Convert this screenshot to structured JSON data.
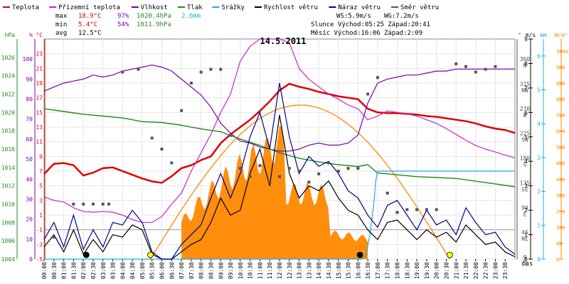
{
  "chart_data": {
    "type": "line",
    "title": "14.5.2011",
    "legend": [
      {
        "name": "Teplota",
        "color": "#dd0000"
      },
      {
        "name": "Přízemní teplota",
        "color": "#cc22cc"
      },
      {
        "name": "Vlhkost",
        "color": "#7700aa"
      },
      {
        "name": "Tlak",
        "color": "#228822"
      },
      {
        "name": "Srážky",
        "color": "#22aadd"
      },
      {
        "name": "Rychlost větru",
        "color": "#000000"
      },
      {
        "name": "Náraz větru",
        "color": "#000088"
      },
      {
        "name": "Směr větru",
        "color": "#555555"
      }
    ],
    "stats": {
      "max_label": "max",
      "max_temp": "18.9°C",
      "max_hum": "97%",
      "max_press": "1020.4hPa",
      "rain": "2.6mm",
      "min_label": "min",
      "min_temp": "5.4°C",
      "min_hum": "54%",
      "min_press": "1011.9hPa",
      "avg_label": "avg",
      "avg_temp": "12.5°C"
    },
    "wind": {
      "ws": "WS:5.9m/s",
      "wg": "WG:7.2m/s"
    },
    "sun": "Slunce Východ:05:25  Západ:20:41",
    "moon": "Měsíc  Východ:16:06  Západ:2:09",
    "xlabel": "čas",
    "x_ticks": [
      "00:00",
      "00:30",
      "01:00",
      "01:30",
      "02:00",
      "02:30",
      "03:00",
      "03:30",
      "04:00",
      "04:30",
      "05:00",
      "05:30",
      "06:00",
      "06:30",
      "07:00",
      "07:30",
      "08:00",
      "08:30",
      "09:00",
      "09:30",
      "10:00",
      "10:30",
      "11:00",
      "11:30",
      "12:00",
      "12:30",
      "13:00",
      "13:30",
      "14:00",
      "14:30",
      "15:00",
      "15:30",
      "16:00",
      "16:30",
      "17:00",
      "17:30",
      "18:00",
      "18:30",
      "19:00",
      "19:30",
      "20:00",
      "20:30",
      "21:00",
      "21:30",
      "22:00",
      "22:30",
      "23:00",
      "23:30"
    ],
    "axes": {
      "hpa": {
        "label": "hPa",
        "color": "#228822",
        "range": [
          1004,
          1028
        ],
        "ticks": [
          1004,
          1006,
          1008,
          1010,
          1012,
          1014,
          1016,
          1018,
          1020,
          1022,
          1024,
          1026
        ]
      },
      "pct": {
        "label": "%",
        "color": "#7700aa",
        "range": [
          0,
          110
        ],
        "ticks": [
          0,
          10,
          20,
          30,
          40,
          50,
          60,
          70,
          80,
          90,
          100
        ]
      },
      "temp": {
        "label": "°C",
        "color": "#dd0000",
        "range": [
          -5,
          25
        ],
        "ticks": [
          -5,
          -3,
          -1,
          1,
          3,
          5,
          7,
          9,
          11,
          13,
          15,
          17,
          19,
          21,
          23
        ]
      },
      "dir": {
        "label": "°",
        "color": "#555555",
        "range": [
          0,
          400
        ],
        "ticks": [
          {
            "v": 0,
            "d": "0",
            "c": "N"
          },
          {
            "v": 45,
            "d": "45",
            "c": "NE"
          },
          {
            "v": 90,
            "d": "90",
            "c": "E"
          },
          {
            "v": 135,
            "d": "135",
            "c": "SE"
          },
          {
            "v": 180,
            "d": "180",
            "c": "S"
          },
          {
            "v": 225,
            "d": "225",
            "c": "SW"
          },
          {
            "v": 270,
            "d": "270",
            "c": "W"
          },
          {
            "v": 315,
            "d": "315",
            "c": "NW"
          },
          {
            "v": 360,
            "d": "360",
            "c": "N"
          }
        ]
      },
      "mm": {
        "label": "mm",
        "color": "#22aadd",
        "range": [
          0,
          6.5
        ],
        "ticks": [
          0,
          1,
          2,
          3,
          4,
          5,
          6
        ]
      },
      "ms": {
        "label": "m/s",
        "color": "#000000",
        "range": [
          0,
          9
        ],
        "ticks": [
          0,
          1,
          2,
          3,
          4,
          5,
          6,
          7,
          8,
          9
        ]
      },
      "wm2": {
        "label": "W/m²",
        "color": "#ff8800",
        "range": [
          0,
          1100
        ],
        "ticks": [
          0,
          80,
          160,
          240,
          320,
          400,
          480,
          560,
          640,
          720,
          800,
          880,
          960,
          1040
        ]
      }
    },
    "series": [
      {
        "name": "Teplota",
        "axis": "temp",
        "color": "#dd0000",
        "x_hours": [
          0,
          0.5,
          1,
          1.5,
          2,
          2.5,
          3,
          3.5,
          4,
          4.5,
          5,
          5.5,
          6,
          6.5,
          7,
          7.5,
          8,
          8.5,
          9,
          9.5,
          10,
          10.5,
          11,
          11.5,
          12,
          12.5,
          13,
          13.5,
          14,
          14.5,
          15,
          15.5,
          16,
          16.5,
          17,
          17.5,
          18,
          18.5,
          19,
          19.5,
          20,
          20.5,
          21,
          21.5,
          22,
          22.5,
          23,
          23.5,
          24
        ],
        "y": [
          6.6,
          8.0,
          8.1,
          7.8,
          6.4,
          6.8,
          7.4,
          7.5,
          7.0,
          6.5,
          6.0,
          5.6,
          5.4,
          6.3,
          7.4,
          7.8,
          8.5,
          9.0,
          10.8,
          12.0,
          13.0,
          14.0,
          15.2,
          16.5,
          18.0,
          18.9,
          18.5,
          18.2,
          17.8,
          17.5,
          17.2,
          17.0,
          16.8,
          15.5,
          15.0,
          14.9,
          14.9,
          14.8,
          14.7,
          14.5,
          14.4,
          14.2,
          14.0,
          13.8,
          13.5,
          13.1,
          12.8,
          12.6,
          12.2
        ]
      },
      {
        "name": "Přízemní teplota",
        "axis": "temp",
        "color": "#cc22cc",
        "x_hours": [
          0,
          0.5,
          1,
          1.5,
          2,
          2.5,
          3,
          3.5,
          4,
          4.5,
          5,
          5.5,
          6,
          6.5,
          7,
          7.5,
          8,
          8.5,
          9,
          9.5,
          10,
          10.5,
          11,
          11.5,
          12,
          12.5,
          13,
          13.5,
          14,
          14.5,
          15,
          15.5,
          16,
          16.5,
          17,
          17.5,
          18,
          18.5,
          19,
          19.5,
          20,
          20.5,
          21,
          21.5,
          22,
          22.5,
          23,
          23.5,
          24
        ],
        "y": [
          3.5,
          3.0,
          2.8,
          2.0,
          1.5,
          1.4,
          1.5,
          1.4,
          1.0,
          0.4,
          0.0,
          0.0,
          0.8,
          2.5,
          4.0,
          7.0,
          9.5,
          12.0,
          15.0,
          17.5,
          22.0,
          24.0,
          25.0,
          25.0,
          25.0,
          24.5,
          21.0,
          19.5,
          18.5,
          17.5,
          16.8,
          16.0,
          15.5,
          14.0,
          14.5,
          15.2,
          15.0,
          14.8,
          14.5,
          14.0,
          13.5,
          12.8,
          12.0,
          11.2,
          10.5,
          10.0,
          9.6,
          9.2,
          8.8
        ]
      },
      {
        "name": "Vlhkost",
        "axis": "pct",
        "color": "#7700aa",
        "x_hours": [
          0,
          0.5,
          1,
          1.5,
          2,
          2.5,
          3,
          3.5,
          4,
          4.5,
          5,
          5.5,
          6,
          6.5,
          7,
          7.5,
          8,
          8.5,
          9,
          9.5,
          10,
          10.5,
          11,
          11.5,
          12,
          12.5,
          13,
          13.5,
          14,
          14.5,
          15,
          15.5,
          16,
          16.5,
          17,
          17.5,
          18,
          18.5,
          19,
          19.5,
          20,
          20.5,
          21,
          21.5,
          22,
          22.5,
          23,
          23.5,
          24
        ],
        "y": [
          84,
          86,
          88,
          89,
          90,
          92,
          91,
          92,
          94,
          95,
          96,
          97,
          96,
          94,
          90,
          86,
          82,
          76,
          68,
          63,
          59,
          58,
          56,
          55,
          54,
          54,
          55,
          57,
          58,
          57,
          57,
          58,
          62,
          78,
          88,
          90,
          91,
          92,
          92,
          93,
          94,
          94,
          95,
          95,
          95,
          95,
          95,
          95,
          95
        ]
      },
      {
        "name": "Tlak",
        "axis": "hpa",
        "color": "#228822",
        "x_hours": [
          0,
          1,
          2,
          3,
          4,
          5,
          6,
          7,
          8,
          9,
          10,
          11,
          12,
          13,
          14,
          15,
          16,
          16.5,
          17,
          18,
          19,
          20,
          21,
          22,
          23,
          24
        ],
        "y": [
          1020.4,
          1020.1,
          1019.8,
          1019.6,
          1019.4,
          1019.0,
          1018.9,
          1018.6,
          1018.2,
          1017.9,
          1017.1,
          1016.4,
          1015.6,
          1015.0,
          1014.6,
          1014.3,
          1014.1,
          1014.3,
          1013.4,
          1013.2,
          1013.0,
          1012.9,
          1012.8,
          1012.5,
          1012.2,
          1011.9
        ]
      },
      {
        "name": "Srážky",
        "axis": "mm",
        "color": "#22aadd",
        "x_hours": [
          0,
          16.2,
          16.4,
          16.6,
          16.8,
          16.9,
          17,
          24
        ],
        "y": [
          0,
          0,
          0.1,
          0.7,
          1.6,
          2.3,
          2.6,
          2.6
        ]
      },
      {
        "name": "Rychlost větru",
        "axis": "ms",
        "color": "#000000",
        "x_hours": [
          0,
          0.5,
          1,
          1.5,
          2,
          2.5,
          3,
          3.5,
          4,
          4.5,
          5,
          5.5,
          6,
          6.5,
          7,
          7.5,
          8,
          8.5,
          9,
          9.5,
          10,
          10.5,
          11,
          11.5,
          12,
          12.5,
          13,
          13.5,
          14,
          14.5,
          15,
          15.5,
          16,
          16.5,
          17,
          17.5,
          18,
          18.5,
          19,
          19.5,
          20,
          20.5,
          21,
          21.5,
          22,
          22.5,
          23,
          23.5,
          24
        ],
        "y": [
          0.5,
          1.0,
          0.3,
          1.2,
          0.2,
          0.8,
          0.3,
          1.0,
          0.9,
          1.4,
          1.2,
          0.2,
          0.0,
          0.0,
          0.3,
          0.6,
          0.8,
          1.5,
          2.5,
          1.8,
          2.0,
          3.5,
          4.5,
          3.0,
          5.9,
          3.5,
          2.5,
          3.0,
          2.8,
          3.2,
          2.5,
          2.0,
          1.8,
          1.2,
          0.8,
          1.5,
          1.6,
          1.2,
          0.8,
          1.2,
          0.9,
          1.1,
          0.7,
          1.4,
          1.0,
          0.6,
          0.7,
          0.3,
          0.1
        ]
      },
      {
        "name": "Náraz větru",
        "axis": "ms",
        "color": "#000088",
        "x_hours": [
          0,
          0.5,
          1,
          1.5,
          2,
          2.5,
          3,
          3.5,
          4,
          4.5,
          5,
          5.5,
          6,
          6.5,
          7,
          7.5,
          8,
          8.5,
          9,
          9.5,
          10,
          10.5,
          11,
          11.5,
          12,
          12.5,
          13,
          13.5,
          14,
          14.5,
          15,
          15.5,
          16,
          16.5,
          17,
          17.5,
          18,
          18.5,
          19,
          19.5,
          20,
          20.5,
          21,
          21.5,
          22,
          22.5,
          23,
          23.5,
          24
        ],
        "y": [
          0.8,
          1.5,
          0.5,
          1.8,
          0.4,
          1.2,
          0.5,
          1.5,
          1.4,
          2.0,
          1.5,
          0.3,
          0.0,
          0.0,
          0.6,
          1.0,
          1.4,
          2.5,
          3.5,
          2.5,
          3.5,
          5.0,
          6.0,
          4.5,
          7.2,
          5.0,
          3.5,
          4.2,
          3.8,
          4.0,
          3.5,
          2.8,
          2.5,
          1.8,
          1.3,
          2.2,
          2.4,
          1.8,
          1.2,
          2.0,
          1.4,
          1.6,
          1.0,
          2.1,
          1.5,
          1.0,
          1.1,
          0.5,
          0.2
        ]
      },
      {
        "name": "Směr větru",
        "axis": "dir",
        "color": "#555555",
        "x_hours": [
          0.5,
          1.5,
          2,
          2.5,
          3,
          3.3,
          4,
          4.8,
          5.5,
          6,
          6.5,
          7,
          7.5,
          8,
          8.5,
          9,
          9.5,
          10,
          10.5,
          11,
          11.5,
          12,
          12.5,
          13,
          13.5,
          14,
          14.5,
          15,
          15.5,
          16,
          16.5,
          17,
          17.5,
          18,
          18.5,
          19,
          19.5,
          20,
          21,
          21.5,
          22,
          22.5,
          23
        ],
        "y": [
          40,
          100,
          100,
          100,
          100,
          100,
          340,
          345,
          220,
          200,
          175,
          270,
          320,
          340,
          345,
          345,
          225,
          165,
          150,
          170,
          140,
          150,
          165,
          160,
          140,
          155,
          175,
          160,
          165,
          165,
          300,
          330,
          120,
          85,
          90,
          90,
          90,
          90,
          355,
          350,
          340,
          345,
          350
        ]
      }
    ],
    "annotations": {
      "solar_theoretical_peak": 770,
      "solar_color": "#ff8800",
      "sunrise_hour": 5.42,
      "sunset_hour": 20.68,
      "moonrise_hour": 16.1,
      "moonset_hour": 2.15
    },
    "grid": true
  }
}
